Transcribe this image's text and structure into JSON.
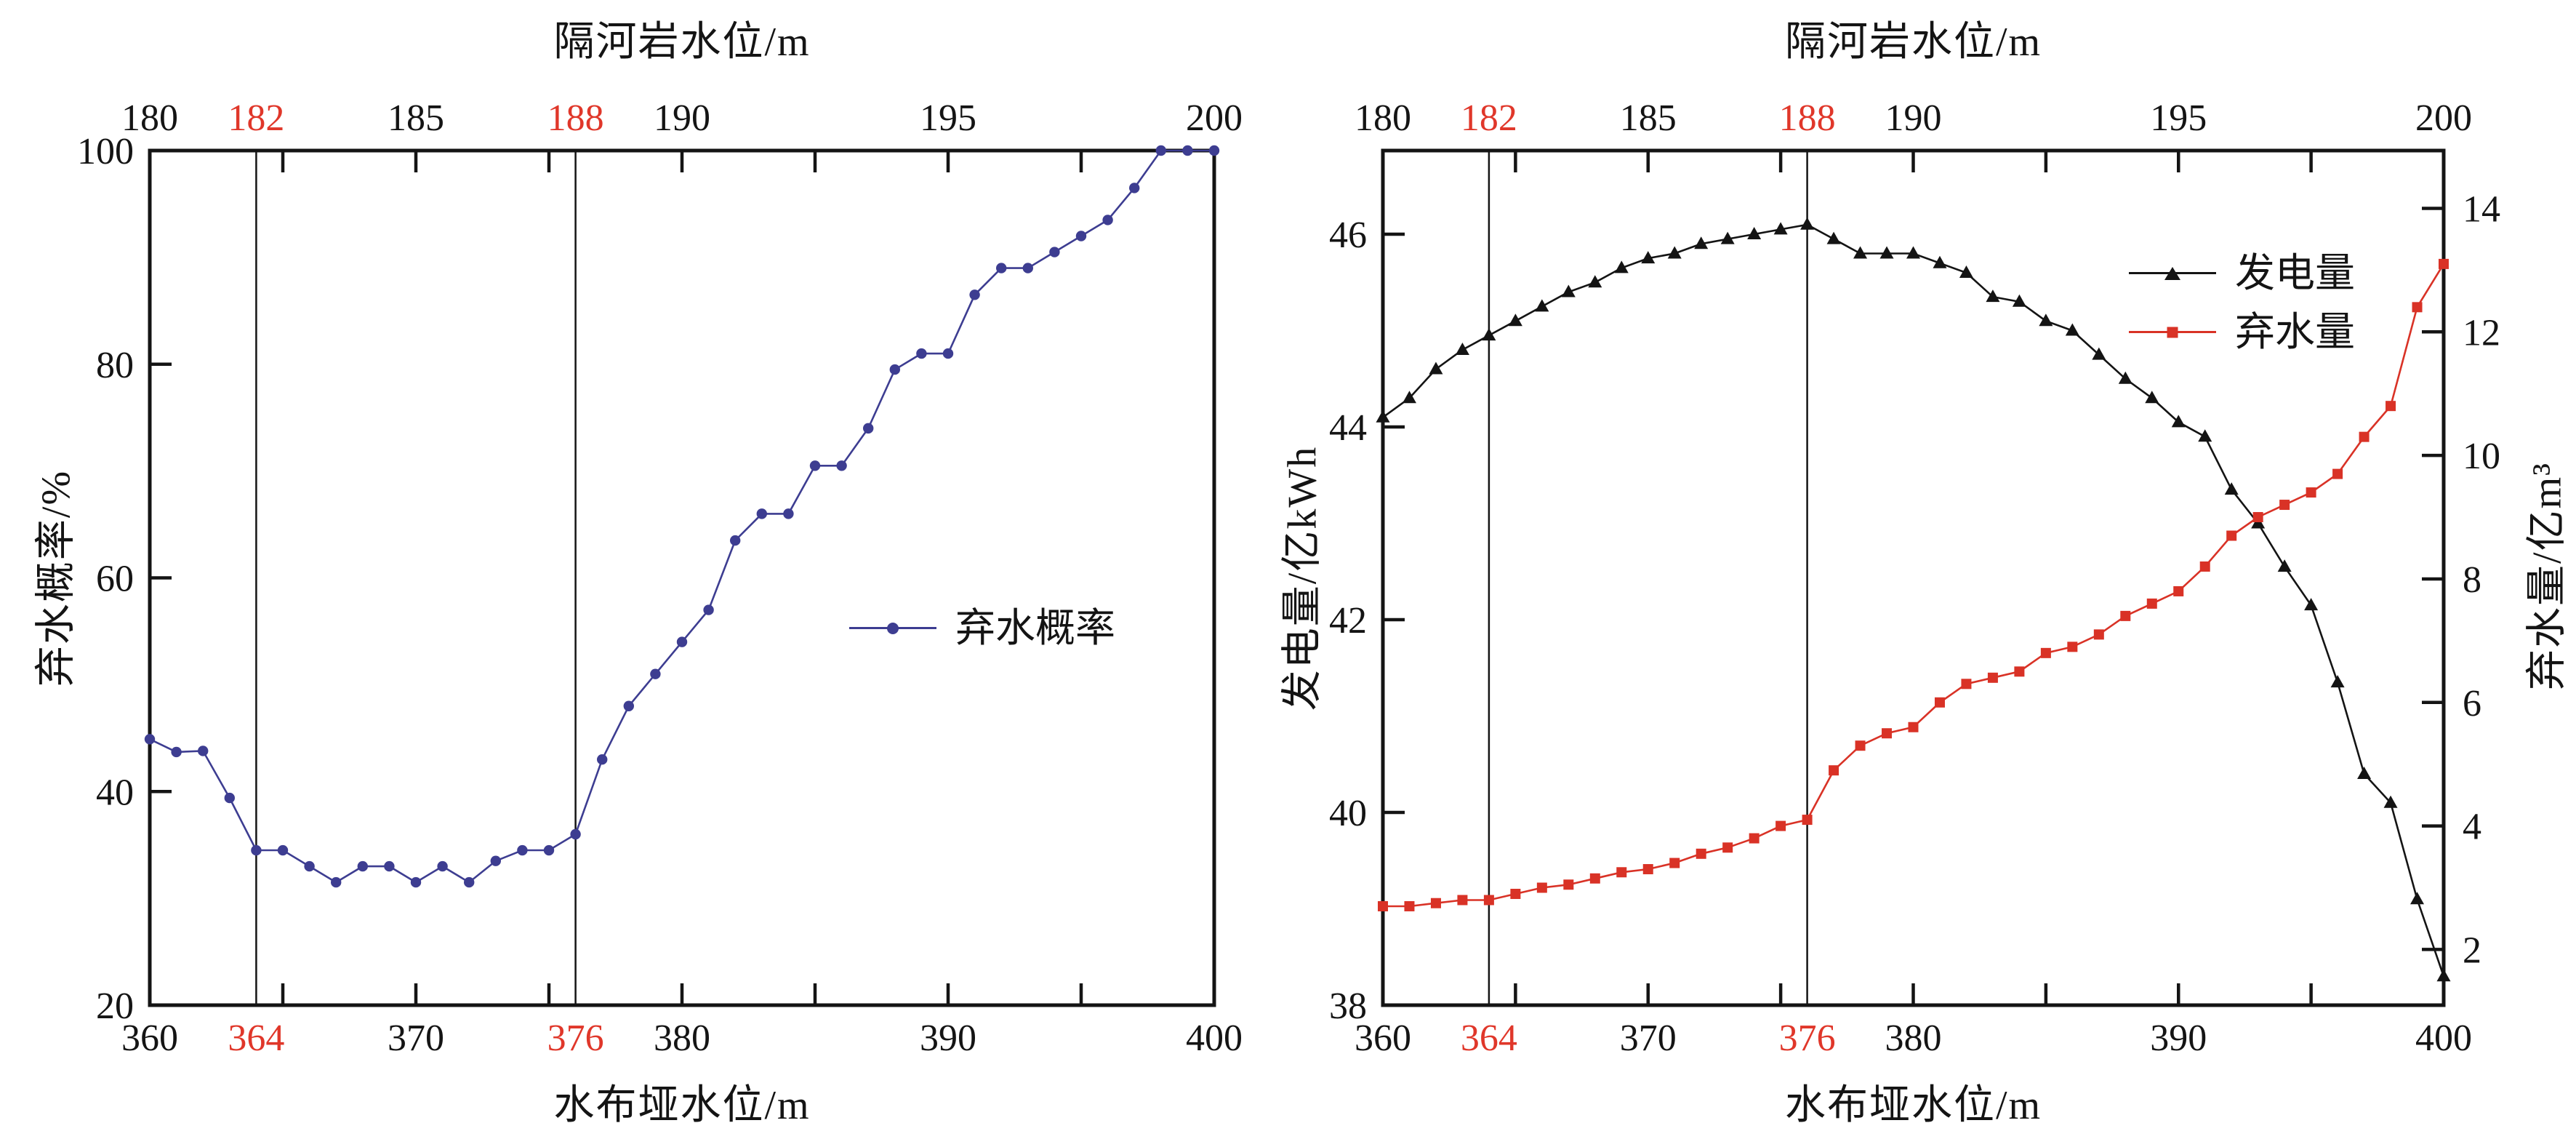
{
  "page": {
    "background": "#ffffff"
  },
  "colors": {
    "axis": "#141414",
    "highlight_label": "#e0372a",
    "spill_probability_line": "#3d3d91",
    "generation_line": "#141414",
    "spill_volume_line": "#d93226"
  },
  "chart_data": [
    {
      "type": "line",
      "id": "spill-probability-chart",
      "top_axis_title": "隔河岩水位/m",
      "x_axis_title": "水布垭水位/m",
      "y_axis_title": "弃水概率/%",
      "x_range": [
        360,
        400
      ],
      "x_minor_ticks": [
        365,
        370,
        375,
        380,
        385,
        390,
        395
      ],
      "reference_lines_x": [
        364,
        376
      ],
      "top_labels": [
        {
          "x": 360,
          "text": "180",
          "red": false
        },
        {
          "x": 364,
          "text": "182",
          "red": true
        },
        {
          "x": 370,
          "text": "185",
          "red": false
        },
        {
          "x": 376,
          "text": "188",
          "red": true
        },
        {
          "x": 380,
          "text": "190",
          "red": false
        },
        {
          "x": 390,
          "text": "195",
          "red": false
        },
        {
          "x": 400,
          "text": "200",
          "red": false
        }
      ],
      "bottom_labels": [
        {
          "x": 360,
          "text": "360",
          "red": false
        },
        {
          "x": 364,
          "text": "364",
          "red": true
        },
        {
          "x": 370,
          "text": "370",
          "red": false
        },
        {
          "x": 376,
          "text": "376",
          "red": true
        },
        {
          "x": 380,
          "text": "380",
          "red": false
        },
        {
          "x": 390,
          "text": "390",
          "red": false
        },
        {
          "x": 400,
          "text": "400",
          "red": false
        }
      ],
      "y_axes": {
        "left": {
          "top_value": 100,
          "bottom_value": 20,
          "tick_values": [
            40,
            60,
            80
          ],
          "label_values": [
            20,
            40,
            60,
            80,
            100
          ]
        }
      },
      "series": [
        {
          "name": "弃水概率",
          "color": "#3d3d91",
          "marker": "circle",
          "y_axis": "left",
          "x": [
            360,
            361,
            362,
            363,
            364,
            365,
            366,
            367,
            368,
            369,
            370,
            371,
            372,
            373,
            374,
            375,
            376,
            377,
            378,
            379,
            380,
            381,
            382,
            383,
            384,
            385,
            386,
            387,
            388,
            389,
            390,
            391,
            392,
            393,
            394,
            395,
            396,
            397,
            398,
            399,
            400
          ],
          "y": [
            44.9,
            43.7,
            43.8,
            39.4,
            34.5,
            34.5,
            33,
            31.5,
            33,
            33,
            31.5,
            33,
            31.5,
            33.5,
            34.5,
            34.5,
            36,
            43,
            48,
            51,
            54,
            57,
            63.5,
            66,
            66,
            70.5,
            70.5,
            74,
            79.5,
            81,
            81,
            86.5,
            89,
            89,
            90.5,
            92,
            93.5,
            96.5,
            100,
            100,
            100
          ]
        }
      ]
    },
    {
      "type": "line",
      "id": "generation-and-spill-chart",
      "top_axis_title": "隔河岩水位/m",
      "x_axis_title": "水布垭水位/m",
      "y_left_title": "发电量/亿kWh",
      "y_right_title": "弃水量/亿m³",
      "x_range": [
        360,
        400
      ],
      "x_minor_ticks": [
        365,
        370,
        375,
        380,
        385,
        390,
        395
      ],
      "reference_lines_x": [
        364,
        376
      ],
      "top_labels": [
        {
          "x": 360,
          "text": "180",
          "red": false
        },
        {
          "x": 364,
          "text": "182",
          "red": true
        },
        {
          "x": 370,
          "text": "185",
          "red": false
        },
        {
          "x": 376,
          "text": "188",
          "red": true
        },
        {
          "x": 380,
          "text": "190",
          "red": false
        },
        {
          "x": 390,
          "text": "195",
          "red": false
        },
        {
          "x": 400,
          "text": "200",
          "red": false
        }
      ],
      "bottom_labels": [
        {
          "x": 360,
          "text": "360",
          "red": false
        },
        {
          "x": 364,
          "text": "364",
          "red": true
        },
        {
          "x": 370,
          "text": "370",
          "red": false
        },
        {
          "x": 376,
          "text": "376",
          "red": true
        },
        {
          "x": 380,
          "text": "380",
          "red": false
        },
        {
          "x": 390,
          "text": "390",
          "red": false
        },
        {
          "x": 400,
          "text": "400",
          "red": false
        }
      ],
      "y_axes": {
        "left": {
          "top_value": 46.868,
          "bottom_value": 38.0,
          "tick_values": [
            40,
            42,
            44,
            46
          ],
          "label_values": [
            38,
            40,
            42,
            44,
            46
          ]
        },
        "right": {
          "top_value": 14.936,
          "bottom_value": 1.098,
          "tick_values": [
            2,
            4,
            6,
            8,
            10,
            12,
            14
          ],
          "label_values": [
            2,
            4,
            6,
            8,
            10,
            12,
            14
          ]
        }
      },
      "series": [
        {
          "name": "发电量",
          "color": "#141414",
          "marker": "triangle",
          "y_axis": "left",
          "x": [
            360,
            361,
            362,
            363,
            364,
            365,
            366,
            367,
            368,
            369,
            370,
            371,
            372,
            373,
            374,
            375,
            376,
            377,
            378,
            379,
            380,
            381,
            382,
            383,
            384,
            385,
            386,
            387,
            388,
            389,
            390,
            391,
            392,
            393,
            394,
            395,
            396,
            397,
            398,
            399,
            400
          ],
          "y": [
            44.1,
            44.3,
            44.6,
            44.8,
            44.95,
            45.1,
            45.25,
            45.4,
            45.5,
            45.65,
            45.75,
            45.8,
            45.9,
            45.95,
            46.0,
            46.05,
            46.1,
            45.95,
            45.8,
            45.8,
            45.8,
            45.7,
            45.6,
            45.35,
            45.3,
            45.1,
            45.0,
            44.75,
            44.5,
            44.3,
            44.05,
            43.9,
            43.35,
            43.0,
            42.55,
            42.15,
            41.35,
            40.4,
            40.1,
            39.1,
            38.3
          ]
        },
        {
          "name": "弃水量",
          "color": "#d93226",
          "marker": "square",
          "y_axis": "right",
          "x": [
            360,
            361,
            362,
            363,
            364,
            365,
            366,
            367,
            368,
            369,
            370,
            371,
            372,
            373,
            374,
            375,
            376,
            377,
            378,
            379,
            380,
            381,
            382,
            383,
            384,
            385,
            386,
            387,
            388,
            389,
            390,
            391,
            392,
            393,
            394,
            395,
            396,
            397,
            398,
            399,
            400
          ],
          "y": [
            2.7,
            2.7,
            2.75,
            2.8,
            2.8,
            2.9,
            3.0,
            3.05,
            3.15,
            3.25,
            3.3,
            3.4,
            3.55,
            3.65,
            3.8,
            4.0,
            4.1,
            4.9,
            5.3,
            5.5,
            5.6,
            6.0,
            6.3,
            6.4,
            6.5,
            6.8,
            6.9,
            7.1,
            7.4,
            7.6,
            7.8,
            8.2,
            8.7,
            9.0,
            9.2,
            9.4,
            9.7,
            10.3,
            10.8,
            12.4,
            13.1
          ]
        }
      ]
    }
  ]
}
